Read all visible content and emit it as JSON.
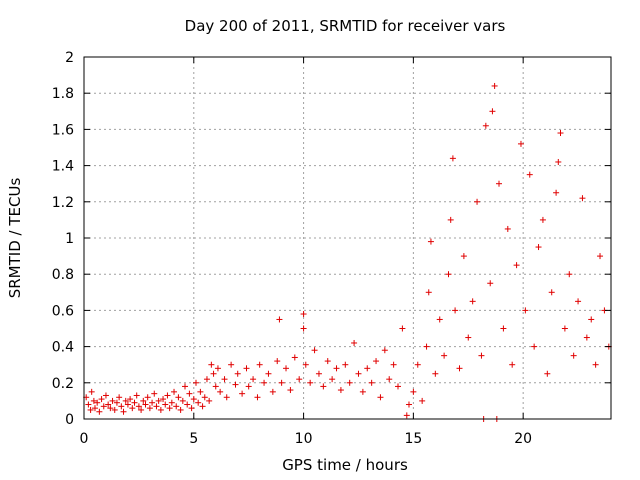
{
  "chart_data": {
    "type": "scatter",
    "title": "Day 200 of 2011, SRMTID for receiver vars",
    "xlabel": "GPS time / hours",
    "ylabel": "SRMTID / TECUs",
    "xlim": [
      0,
      24
    ],
    "ylim": [
      0,
      2
    ],
    "xticks": [
      0,
      5,
      10,
      15,
      20
    ],
    "yticks": [
      0,
      0.2,
      0.4,
      0.6,
      0.8,
      1,
      1.2,
      1.4,
      1.6,
      1.8,
      2
    ],
    "ytick_labels": [
      "0",
      "0.2",
      "0.4",
      "0.6",
      "0.8",
      "1",
      "1.2",
      "1.4",
      "1.6",
      "1.8",
      "2"
    ],
    "xtick_labels": [
      "0",
      "5",
      "10",
      "15",
      "20"
    ],
    "grid": true,
    "marker": "+",
    "color": "#e00000",
    "series": [
      {
        "name": "SRMTID",
        "points": [
          [
            0.1,
            0.12
          ],
          [
            0.2,
            0.08
          ],
          [
            0.3,
            0.05
          ],
          [
            0.35,
            0.15
          ],
          [
            0.45,
            0.1
          ],
          [
            0.5,
            0.06
          ],
          [
            0.6,
            0.09
          ],
          [
            0.7,
            0.04
          ],
          [
            0.8,
            0.11
          ],
          [
            0.9,
            0.07
          ],
          [
            1.0,
            0.13
          ],
          [
            1.1,
            0.08
          ],
          [
            1.2,
            0.06
          ],
          [
            1.3,
            0.1
          ],
          [
            1.4,
            0.05
          ],
          [
            1.5,
            0.09
          ],
          [
            1.6,
            0.12
          ],
          [
            1.7,
            0.07
          ],
          [
            1.8,
            0.04
          ],
          [
            1.9,
            0.1
          ],
          [
            2.0,
            0.08
          ],
          [
            2.1,
            0.11
          ],
          [
            2.2,
            0.06
          ],
          [
            2.3,
            0.09
          ],
          [
            2.4,
            0.13
          ],
          [
            2.5,
            0.07
          ],
          [
            2.6,
            0.05
          ],
          [
            2.7,
            0.1
          ],
          [
            2.8,
            0.08
          ],
          [
            2.9,
            0.12
          ],
          [
            3.0,
            0.06
          ],
          [
            3.1,
            0.09
          ],
          [
            3.2,
            0.14
          ],
          [
            3.3,
            0.07
          ],
          [
            3.4,
            0.1
          ],
          [
            3.5,
            0.05
          ],
          [
            3.6,
            0.11
          ],
          [
            3.7,
            0.08
          ],
          [
            3.8,
            0.13
          ],
          [
            3.9,
            0.06
          ],
          [
            4.0,
            0.09
          ],
          [
            4.1,
            0.15
          ],
          [
            4.2,
            0.07
          ],
          [
            4.3,
            0.12
          ],
          [
            4.4,
            0.05
          ],
          [
            4.5,
            0.1
          ],
          [
            4.6,
            0.18
          ],
          [
            4.7,
            0.08
          ],
          [
            4.8,
            0.14
          ],
          [
            4.9,
            0.06
          ],
          [
            5.0,
            0.11
          ],
          [
            5.1,
            0.2
          ],
          [
            5.2,
            0.09
          ],
          [
            5.3,
            0.15
          ],
          [
            5.4,
            0.07
          ],
          [
            5.5,
            0.12
          ],
          [
            5.6,
            0.22
          ],
          [
            5.7,
            0.1
          ],
          [
            5.8,
            0.3
          ],
          [
            5.9,
            0.25
          ],
          [
            6.0,
            0.18
          ],
          [
            6.1,
            0.28
          ],
          [
            6.2,
            0.15
          ],
          [
            6.4,
            0.22
          ],
          [
            6.5,
            0.12
          ],
          [
            6.7,
            0.3
          ],
          [
            6.9,
            0.19
          ],
          [
            7.0,
            0.25
          ],
          [
            7.2,
            0.14
          ],
          [
            7.4,
            0.28
          ],
          [
            7.5,
            0.18
          ],
          [
            7.7,
            0.22
          ],
          [
            7.9,
            0.12
          ],
          [
            8.0,
            0.3
          ],
          [
            8.2,
            0.2
          ],
          [
            8.4,
            0.25
          ],
          [
            8.6,
            0.15
          ],
          [
            8.8,
            0.32
          ],
          [
            8.9,
            0.55
          ],
          [
            9.0,
            0.2
          ],
          [
            9.2,
            0.28
          ],
          [
            9.4,
            0.16
          ],
          [
            9.6,
            0.34
          ],
          [
            9.8,
            0.22
          ],
          [
            10.0,
            0.5
          ],
          [
            10.0,
            0.58
          ],
          [
            10.1,
            0.3
          ],
          [
            10.3,
            0.2
          ],
          [
            10.5,
            0.38
          ],
          [
            10.7,
            0.25
          ],
          [
            10.9,
            0.18
          ],
          [
            11.1,
            0.32
          ],
          [
            11.3,
            0.22
          ],
          [
            11.5,
            0.28
          ],
          [
            11.7,
            0.16
          ],
          [
            11.9,
            0.3
          ],
          [
            12.1,
            0.2
          ],
          [
            12.3,
            0.42
          ],
          [
            12.5,
            0.25
          ],
          [
            12.7,
            0.15
          ],
          [
            12.9,
            0.28
          ],
          [
            13.1,
            0.2
          ],
          [
            13.3,
            0.32
          ],
          [
            13.5,
            0.12
          ],
          [
            13.7,
            0.38
          ],
          [
            13.9,
            0.22
          ],
          [
            14.1,
            0.3
          ],
          [
            14.3,
            0.18
          ],
          [
            14.5,
            0.5
          ],
          [
            14.7,
            0.02
          ],
          [
            14.8,
            0.08
          ],
          [
            15.0,
            0.15
          ],
          [
            15.2,
            0.3
          ],
          [
            15.4,
            0.1
          ],
          [
            15.6,
            0.4
          ],
          [
            15.7,
            0.7
          ],
          [
            15.8,
            0.98
          ],
          [
            16.0,
            0.25
          ],
          [
            16.2,
            0.55
          ],
          [
            16.4,
            0.35
          ],
          [
            16.6,
            0.8
          ],
          [
            16.7,
            1.1
          ],
          [
            16.8,
            1.44
          ],
          [
            16.9,
            0.6
          ],
          [
            17.1,
            0.28
          ],
          [
            17.3,
            0.9
          ],
          [
            17.5,
            0.45
          ],
          [
            17.7,
            0.65
          ],
          [
            17.9,
            1.2
          ],
          [
            18.1,
            0.35
          ],
          [
            18.2,
            0.0
          ],
          [
            18.3,
            1.62
          ],
          [
            18.5,
            0.75
          ],
          [
            18.6,
            1.7
          ],
          [
            18.7,
            1.84
          ],
          [
            18.8,
            0.0
          ],
          [
            18.9,
            1.3
          ],
          [
            19.1,
            0.5
          ],
          [
            19.3,
            1.05
          ],
          [
            19.5,
            0.3
          ],
          [
            19.7,
            0.85
          ],
          [
            19.9,
            1.52
          ],
          [
            20.1,
            0.6
          ],
          [
            20.3,
            1.35
          ],
          [
            20.5,
            0.4
          ],
          [
            20.7,
            0.95
          ],
          [
            20.9,
            1.1
          ],
          [
            21.1,
            0.25
          ],
          [
            21.3,
            0.7
          ],
          [
            21.5,
            1.25
          ],
          [
            21.6,
            1.42
          ],
          [
            21.7,
            1.58
          ],
          [
            21.9,
            0.5
          ],
          [
            22.1,
            0.8
          ],
          [
            22.3,
            0.35
          ],
          [
            22.5,
            0.65
          ],
          [
            22.7,
            1.22
          ],
          [
            22.9,
            0.45
          ],
          [
            23.1,
            0.55
          ],
          [
            23.3,
            0.3
          ],
          [
            23.5,
            0.9
          ],
          [
            23.7,
            0.6
          ],
          [
            23.9,
            0.4
          ]
        ]
      }
    ]
  }
}
